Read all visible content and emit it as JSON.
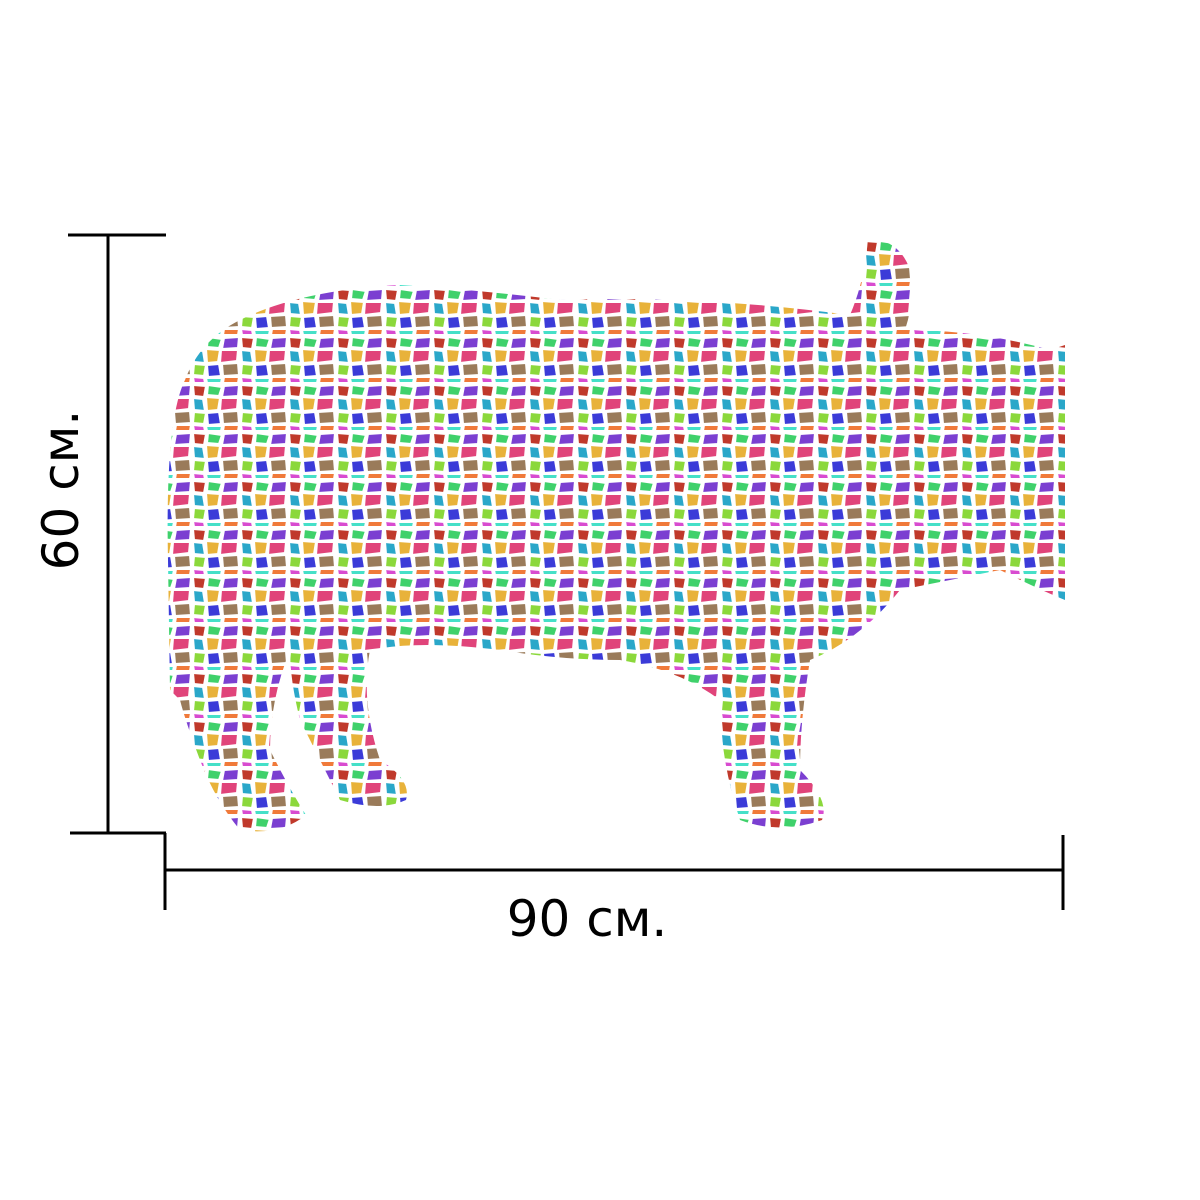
{
  "dimensions": {
    "width_label": "90 см.",
    "height_label": "60 см."
  }
}
